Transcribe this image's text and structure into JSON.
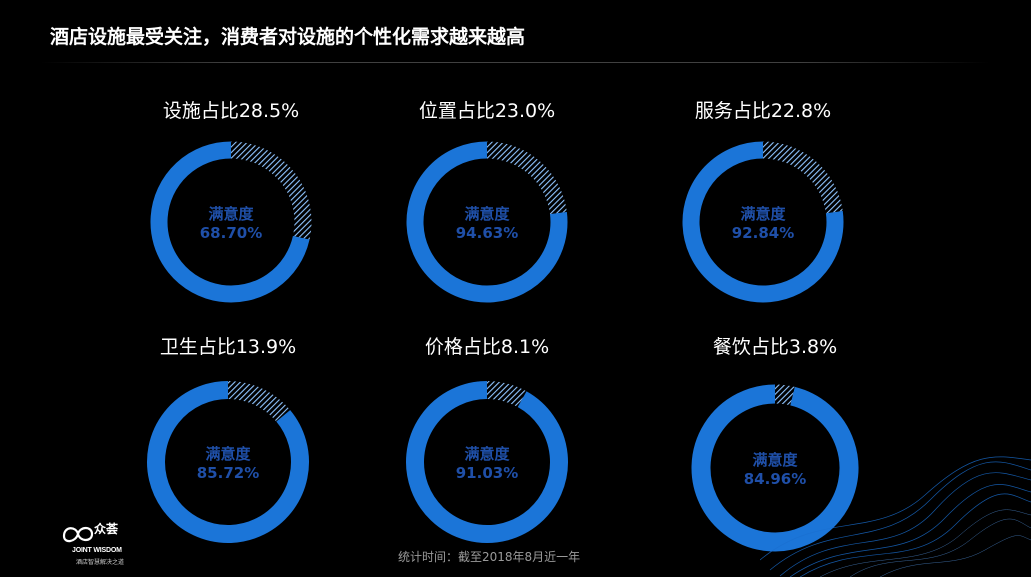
{
  "title": "酒店设施最受关注，消费者对设施的个性化需求越来越高",
  "footnote": "统计时间：截至2018年8月近一年",
  "logo": {
    "brand": "众荟",
    "en": "JOINT WISDOM",
    "slogan": "酒店智慧解决之道",
    "icon": "infinity-logo-icon"
  },
  "colors": {
    "ring": "#1b75d8",
    "hatch": "#8fc4ff",
    "center_text": "#1f4fa8",
    "background": "#000000"
  },
  "chart_data": [
    {
      "type": "donut",
      "label": "设施占比28.5%",
      "share_pct": 28.5,
      "center_title": "满意度",
      "center_value": "68.70%"
    },
    {
      "type": "donut",
      "label": "位置占比23.0%",
      "share_pct": 23.0,
      "center_title": "满意度",
      "center_value": "94.63%"
    },
    {
      "type": "donut",
      "label": "服务占比22.8%",
      "share_pct": 22.8,
      "center_title": "满意度",
      "center_value": "92.84%"
    },
    {
      "type": "donut",
      "label": "卫生占比13.9%",
      "share_pct": 13.9,
      "center_title": "满意度",
      "center_value": "85.72%"
    },
    {
      "type": "donut",
      "label": "价格占比8.1%",
      "share_pct": 8.1,
      "center_title": "满意度",
      "center_value": "91.03%"
    },
    {
      "type": "donut",
      "label": "餐饮占比3.8%",
      "share_pct": 3.8,
      "center_title": "满意度",
      "center_value": "84.96%"
    }
  ]
}
